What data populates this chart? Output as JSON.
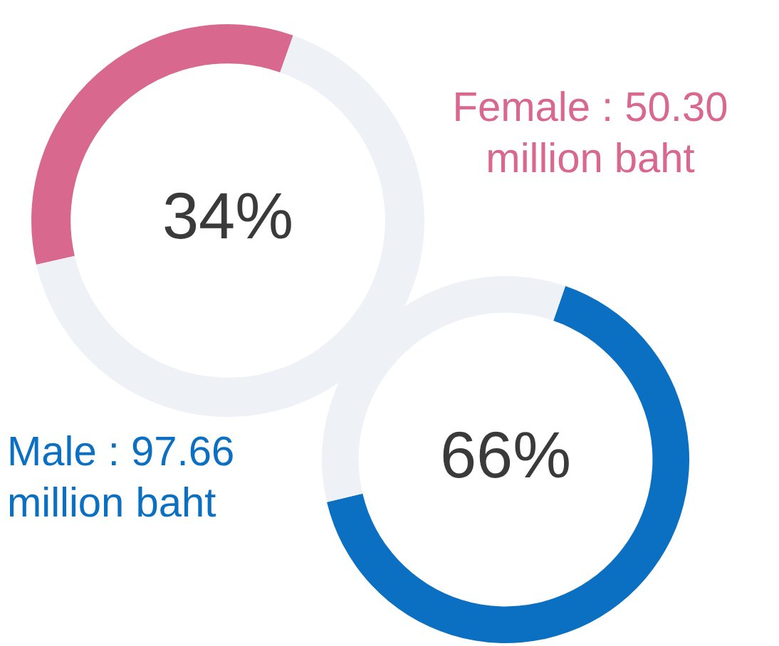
{
  "chart_data": [
    {
      "type": "donut",
      "title": "Female : 50.30 million baht",
      "annotations": [
        "34%"
      ],
      "categories": [
        null,
        null
      ],
      "values": [
        34,
        66
      ],
      "colors": [
        "#d9688f",
        "#eef2f6"
      ]
    },
    {
      "type": "donut",
      "title": "Male : 97.66 million baht",
      "annotations": [
        "66%"
      ],
      "categories": [
        null,
        null
      ],
      "values": [
        66,
        34
      ],
      "colors": [
        "#0b6fc2",
        "#eef2f6"
      ]
    }
  ]
}
